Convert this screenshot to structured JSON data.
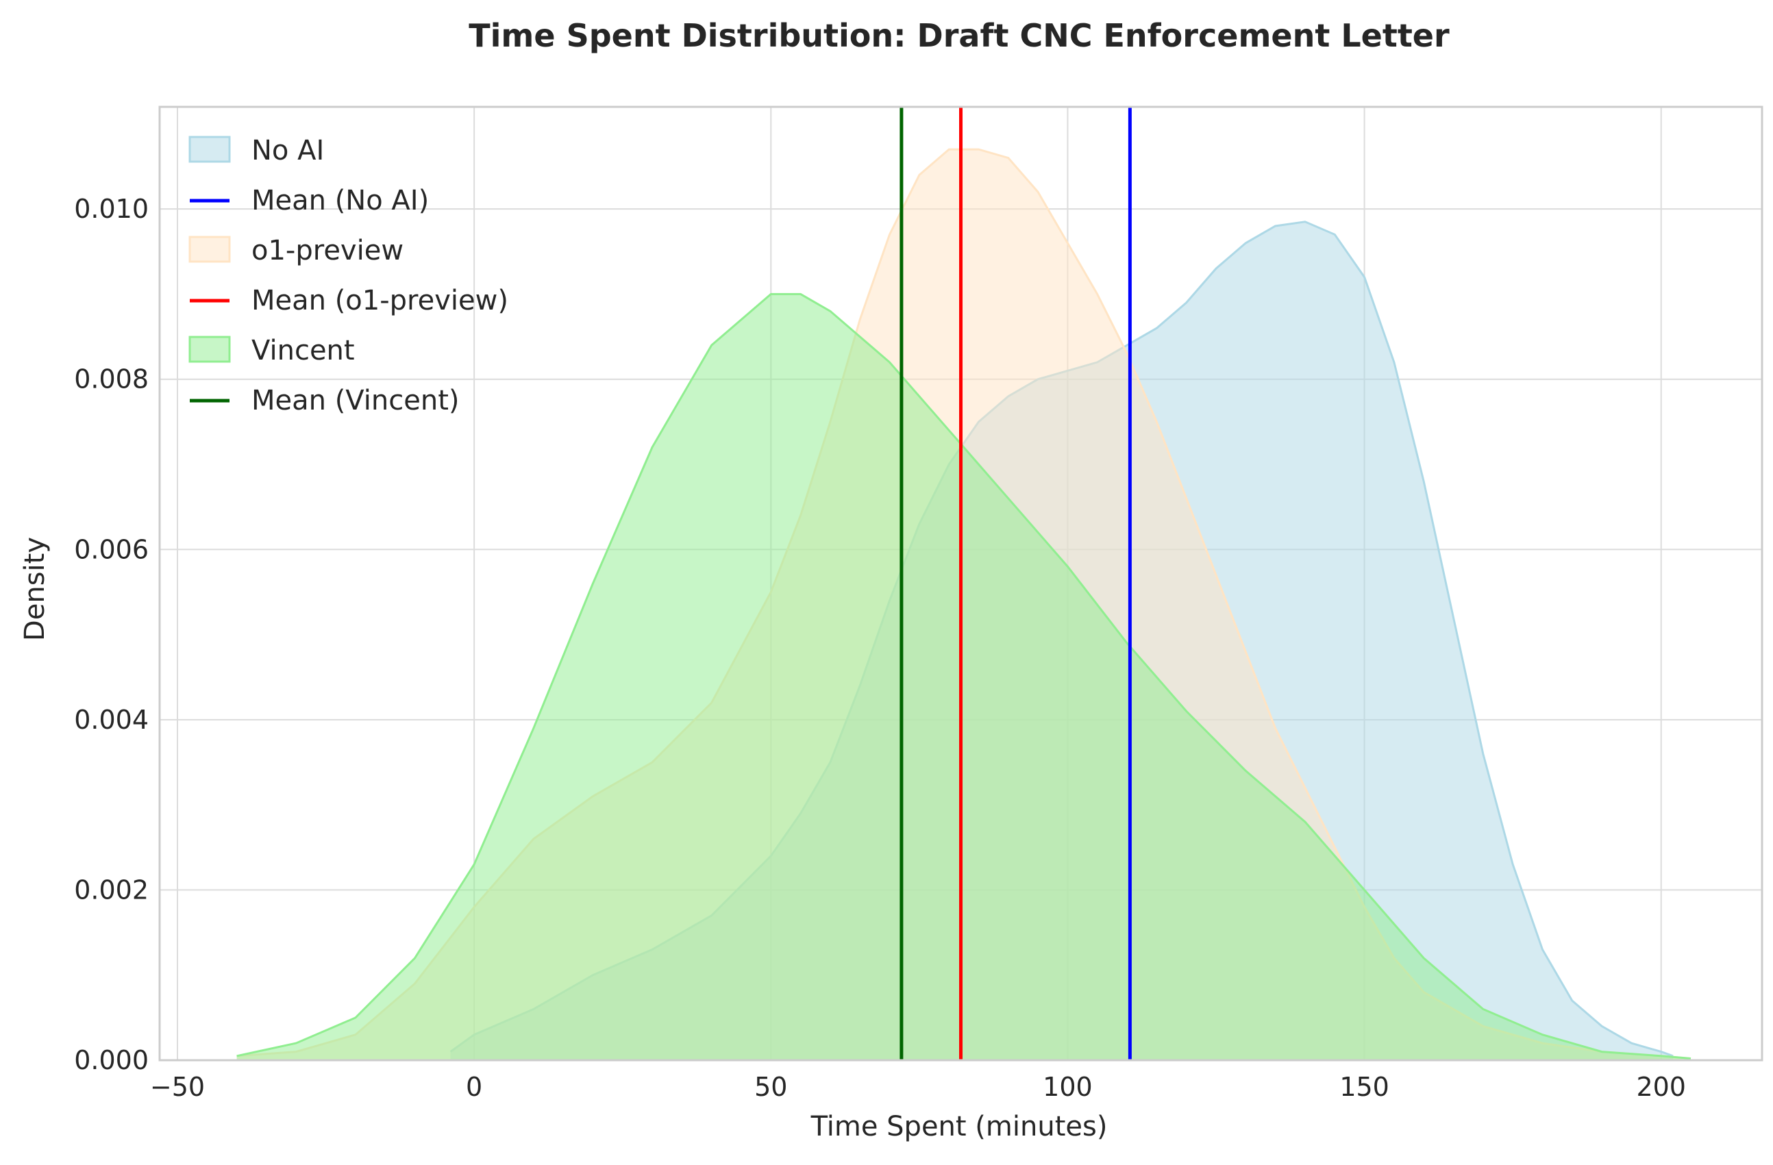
{
  "chart_data": {
    "type": "area",
    "title": "Time Spent Distribution: Draft CNC Enforcement Letter",
    "xlabel": "Time Spent (minutes)",
    "ylabel": "Density",
    "xlim": [
      -53,
      217
    ],
    "ylim": [
      0,
      0.0112
    ],
    "xticks": [
      -50,
      0,
      50,
      100,
      150,
      200
    ],
    "xtick_labels": [
      "−50",
      "0",
      "50",
      "100",
      "150",
      "200"
    ],
    "yticks": [
      0,
      0.002,
      0.004,
      0.006,
      0.008,
      0.01
    ],
    "ytick_labels": [
      "0.000",
      "0.002",
      "0.004",
      "0.006",
      "0.008",
      "0.010"
    ],
    "grid": true,
    "legend_position": "top-left",
    "series": [
      {
        "name": "No AI",
        "fill_color": "#add8e6",
        "mean_label": "Mean (No AI)",
        "mean_color": "#0000ff",
        "mean": 110.5,
        "x": [
          -4,
          0,
          10,
          20,
          30,
          40,
          50,
          55,
          60,
          65,
          70,
          75,
          80,
          85,
          90,
          95,
          100,
          105,
          110,
          115,
          120,
          125,
          130,
          135,
          140,
          145,
          150,
          155,
          160,
          165,
          170,
          175,
          180,
          185,
          190,
          195,
          200,
          202
        ],
        "y": [
          0.0001,
          0.0003,
          0.0006,
          0.001,
          0.0013,
          0.0017,
          0.0024,
          0.0029,
          0.0035,
          0.0044,
          0.0054,
          0.0063,
          0.007,
          0.0075,
          0.0078,
          0.008,
          0.0081,
          0.0082,
          0.0084,
          0.0086,
          0.0089,
          0.0093,
          0.0096,
          0.0098,
          0.00985,
          0.0097,
          0.0092,
          0.0082,
          0.0068,
          0.0052,
          0.0036,
          0.0023,
          0.0013,
          0.0007,
          0.0004,
          0.0002,
          0.0001,
          5e-05
        ]
      },
      {
        "name": "o1-preview",
        "fill_color": "#ffe4c4",
        "mean_label": "Mean (o1-preview)",
        "mean_color": "#ff0000",
        "mean": 82,
        "x": [
          -40,
          -30,
          -20,
          -10,
          0,
          10,
          20,
          30,
          40,
          50,
          55,
          60,
          65,
          70,
          75,
          80,
          85,
          90,
          95,
          100,
          105,
          110,
          115,
          120,
          125,
          130,
          135,
          140,
          145,
          150,
          155,
          160,
          170,
          180,
          190,
          200,
          205
        ],
        "y": [
          5e-05,
          0.0001,
          0.0003,
          0.0009,
          0.0018,
          0.0026,
          0.0031,
          0.0035,
          0.0042,
          0.0055,
          0.0064,
          0.0075,
          0.0087,
          0.0097,
          0.0104,
          0.0107,
          0.0107,
          0.0106,
          0.0102,
          0.0096,
          0.009,
          0.0083,
          0.0075,
          0.0066,
          0.0057,
          0.0048,
          0.0039,
          0.0032,
          0.0025,
          0.0018,
          0.0012,
          0.0008,
          0.0004,
          0.0002,
          0.0001,
          5e-05,
          2e-05
        ]
      },
      {
        "name": "Vincent",
        "fill_color": "#90ee90",
        "mean_label": "Mean (Vincent)",
        "mean_color": "#006400",
        "mean": 72,
        "x": [
          -40,
          -30,
          -20,
          -10,
          0,
          10,
          20,
          30,
          40,
          50,
          55,
          60,
          70,
          80,
          90,
          100,
          110,
          120,
          130,
          140,
          150,
          160,
          170,
          180,
          190,
          200,
          205
        ],
        "y": [
          5e-05,
          0.0002,
          0.0005,
          0.0012,
          0.0023,
          0.0039,
          0.0056,
          0.0072,
          0.0084,
          0.009,
          0.009,
          0.0088,
          0.0082,
          0.0074,
          0.0066,
          0.0058,
          0.0049,
          0.0041,
          0.0034,
          0.0028,
          0.002,
          0.0012,
          0.0006,
          0.0003,
          0.0001,
          5e-05,
          2e-05
        ]
      }
    ]
  }
}
